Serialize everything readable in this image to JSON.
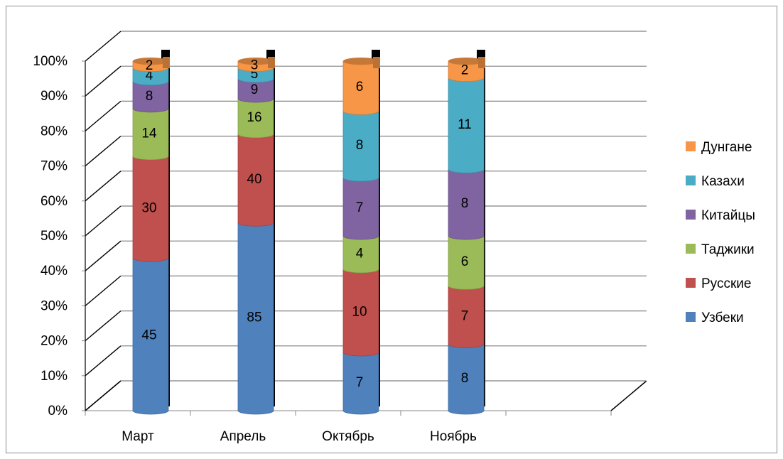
{
  "chart_data": {
    "type": "bar",
    "stacked": "percent",
    "style": "3d-cylinder",
    "categories": [
      "Март",
      "Апрель",
      "Октябрь",
      "Ноябрь"
    ],
    "series": [
      {
        "name": "Узбеки",
        "color": "#4F81BD",
        "values": [
          45,
          85,
          7,
          8
        ]
      },
      {
        "name": "Русские",
        "color": "#C0504D",
        "values": [
          30,
          40,
          10,
          7
        ]
      },
      {
        "name": "Таджики",
        "color": "#9BBB59",
        "values": [
          14,
          16,
          4,
          6
        ]
      },
      {
        "name": "Китайцы",
        "color": "#8064A2",
        "values": [
          8,
          9,
          7,
          8
        ]
      },
      {
        "name": "Казахи",
        "color": "#4BACC6",
        "values": [
          4,
          5,
          8,
          11
        ]
      },
      {
        "name": "Дунгане",
        "color": "#F79646",
        "values": [
          2,
          3,
          6,
          2
        ]
      }
    ],
    "y_ticks": [
      "0%",
      "10%",
      "20%",
      "30%",
      "40%",
      "50%",
      "60%",
      "70%",
      "80%",
      "90%",
      "100%"
    ],
    "ylim": [
      0,
      100
    ],
    "grid": true,
    "legend": "right",
    "legend_order": [
      "Дунгане",
      "Казахи",
      "Китайцы",
      "Таджики",
      "Русские",
      "Узбеки"
    ]
  }
}
